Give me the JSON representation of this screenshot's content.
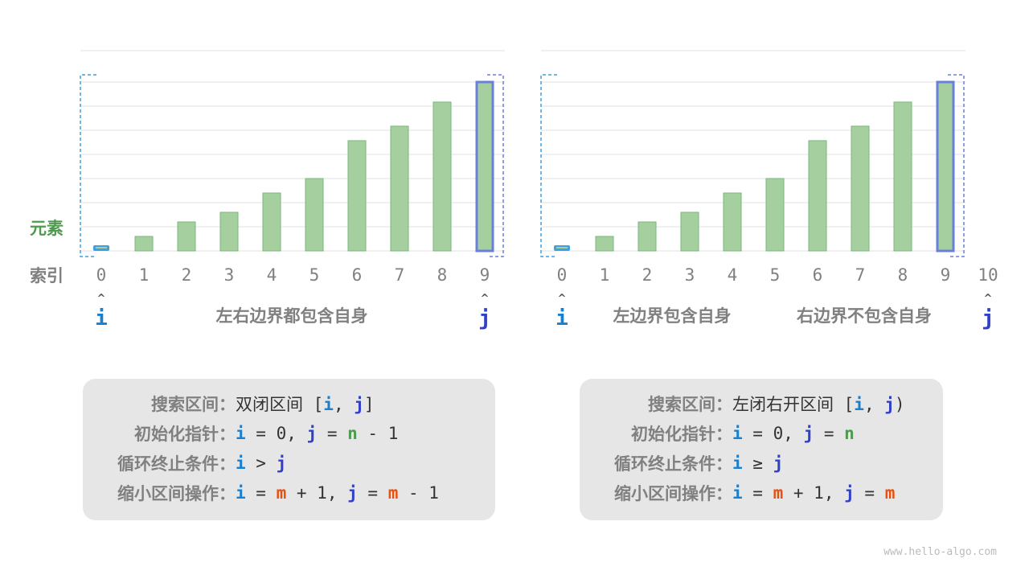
{
  "labels": {
    "element": "元素",
    "index": "索引"
  },
  "colors": {
    "bar_fill": "#a6cfa0",
    "bar_stroke": "#7ab77a",
    "i": "#1a7fcc",
    "j": "#3040c8",
    "highlight_j": "#6a80d8",
    "highlight_i": "#3da0e0",
    "grid": "#e2e2e2",
    "label": "#808080"
  },
  "bar_heights": [
    0.25,
    0.6,
    1.2,
    1.6,
    2.4,
    3.0,
    4.57,
    5.17,
    6.17,
    7.0
  ],
  "panels": [
    {
      "indices": [
        "0",
        "1",
        "2",
        "3",
        "4",
        "5",
        "6",
        "7",
        "8",
        "9"
      ],
      "i_label": "i",
      "j_label": "j",
      "i_at": 0,
      "j_at": 9,
      "captions": [
        "左右边界都包含自身"
      ],
      "box": {
        "lines": [
          {
            "key": "搜索区间：",
            "tokens": [
              {
                "t": "双闭区间 [",
                "c": ""
              },
              {
                "t": "i",
                "c": "ci"
              },
              {
                "t": ", ",
                "c": ""
              },
              {
                "t": "j",
                "c": "cj"
              },
              {
                "t": "]",
                "c": ""
              }
            ]
          },
          {
            "key": "初始化指针：",
            "tokens": [
              {
                "t": "i",
                "c": "ci"
              },
              {
                "t": " = 0, ",
                "c": ""
              },
              {
                "t": "j",
                "c": "cj"
              },
              {
                "t": " = ",
                "c": ""
              },
              {
                "t": "n",
                "c": "cn"
              },
              {
                "t": " - 1",
                "c": ""
              }
            ]
          },
          {
            "key": "循环终止条件：",
            "tokens": [
              {
                "t": "i",
                "c": "ci"
              },
              {
                "t": " > ",
                "c": ""
              },
              {
                "t": "j",
                "c": "cj"
              }
            ]
          },
          {
            "key": "缩小区间操作：",
            "tokens": [
              {
                "t": "i",
                "c": "ci"
              },
              {
                "t": " = ",
                "c": ""
              },
              {
                "t": "m",
                "c": "cm"
              },
              {
                "t": " + 1, ",
                "c": ""
              },
              {
                "t": "j",
                "c": "cj"
              },
              {
                "t": " = ",
                "c": ""
              },
              {
                "t": "m",
                "c": "cm"
              },
              {
                "t": " - 1",
                "c": ""
              }
            ]
          }
        ]
      }
    },
    {
      "indices": [
        "0",
        "1",
        "2",
        "3",
        "4",
        "5",
        "6",
        "7",
        "8",
        "9",
        "10"
      ],
      "i_label": "i",
      "j_label": "j",
      "i_at": 0,
      "j_at": 10,
      "captions": [
        "左边界包含自身",
        "右边界不包含自身"
      ],
      "box": {
        "lines": [
          {
            "key": "搜索区间：",
            "tokens": [
              {
                "t": "左闭右开区间 [",
                "c": ""
              },
              {
                "t": "i",
                "c": "ci"
              },
              {
                "t": ", ",
                "c": ""
              },
              {
                "t": "j",
                "c": "cj"
              },
              {
                "t": ")",
                "c": ""
              }
            ]
          },
          {
            "key": "初始化指针：",
            "tokens": [
              {
                "t": "i",
                "c": "ci"
              },
              {
                "t": " = 0, ",
                "c": ""
              },
              {
                "t": "j",
                "c": "cj"
              },
              {
                "t": " = ",
                "c": ""
              },
              {
                "t": "n",
                "c": "cn"
              }
            ]
          },
          {
            "key": "循环终止条件：",
            "tokens": [
              {
                "t": "i",
                "c": "ci"
              },
              {
                "t": " ≥ ",
                "c": ""
              },
              {
                "t": "j",
                "c": "cj"
              }
            ]
          },
          {
            "key": "缩小区间操作：",
            "tokens": [
              {
                "t": "i",
                "c": "ci"
              },
              {
                "t": " = ",
                "c": ""
              },
              {
                "t": "m",
                "c": "cm"
              },
              {
                "t": " + 1, ",
                "c": ""
              },
              {
                "t": "j",
                "c": "cj"
              },
              {
                "t": " = ",
                "c": ""
              },
              {
                "t": "m",
                "c": "cm"
              }
            ]
          }
        ]
      }
    }
  ],
  "watermark": "www.hello-algo.com"
}
